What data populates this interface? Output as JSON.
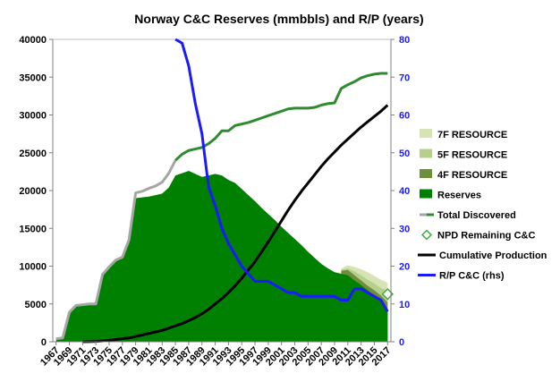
{
  "chart_data": {
    "type": "area",
    "title": "Norway C&C Reserves (mmbbls) and R/P (years)",
    "left_axis": {
      "ticks": [
        0,
        5000,
        10000,
        15000,
        20000,
        25000,
        30000,
        35000,
        40000
      ],
      "ylim": [
        0,
        40000
      ]
    },
    "right_axis": {
      "ticks": [
        0,
        10,
        20,
        30,
        40,
        50,
        60,
        70,
        80
      ],
      "ylim": [
        0,
        80
      ]
    },
    "x_tick_labels": [
      "1967",
      "1969",
      "1971",
      "1973",
      "1975",
      "1977",
      "1979",
      "1981",
      "1983",
      "1985",
      "1987",
      "1989",
      "1991",
      "1993",
      "1995",
      "1997",
      "1999",
      "2001",
      "2003",
      "2005",
      "2007",
      "2009",
      "2011",
      "2013",
      "2015",
      "2017"
    ],
    "xlim": [
      1966.5,
      2017.5
    ],
    "colors": {
      "f7": "#d6e4b4",
      "f5": "#b6cf8c",
      "f4": "#6e8f3a",
      "reserves": "#008000",
      "total_discovered": "#a6a6a6",
      "total_discovered_top": "#2e8b2e",
      "npd": "#44aa44",
      "cumulative": "#000000",
      "rp": "#1a1aff"
    },
    "series": [
      {
        "name": "7F RESOURCE",
        "kind": "area",
        "x": [
          2010,
          2011,
          2012,
          2013,
          2014,
          2015,
          2016,
          2017
        ],
        "values": [
          9700,
          10100,
          9900,
          9600,
          9200,
          8700,
          8200,
          7800
        ]
      },
      {
        "name": "5F RESOURCE",
        "kind": "area",
        "x": [
          2010,
          2011,
          2012,
          2013,
          2014,
          2015,
          2016,
          2017
        ],
        "values": [
          9500,
          9700,
          9300,
          8800,
          8200,
          7700,
          7100,
          6700
        ]
      },
      {
        "name": "4F RESOURCE",
        "kind": "area",
        "x": [
          2010,
          2011,
          2012,
          2013,
          2014,
          2015,
          2016,
          2017
        ],
        "values": [
          9400,
          9500,
          8800,
          8100,
          7400,
          6800,
          6100,
          5200
        ]
      },
      {
        "name": "Reserves",
        "kind": "area",
        "x": [
          1967,
          1968,
          1969,
          1970,
          1971,
          1972,
          1973,
          1974,
          1975,
          1976,
          1977,
          1978,
          1979,
          1980,
          1981,
          1982,
          1983,
          1984,
          1985,
          1986,
          1987,
          1988,
          1989,
          1990,
          1991,
          1992,
          1993,
          1994,
          1995,
          1996,
          1997,
          1998,
          1999,
          2000,
          2001,
          2002,
          2003,
          2004,
          2005,
          2006,
          2007,
          2008,
          2009,
          2010,
          2011,
          2012,
          2013,
          2014,
          2015,
          2016,
          2017
        ],
        "values": [
          400,
          500,
          3800,
          4700,
          4800,
          4900,
          4900,
          8800,
          9800,
          10700,
          11000,
          13000,
          19000,
          19100,
          19200,
          19400,
          19600,
          20400,
          22000,
          22300,
          22600,
          22200,
          21800,
          22000,
          22200,
          22000,
          21400,
          21000,
          20200,
          19400,
          18600,
          17700,
          16900,
          16100,
          15200,
          14400,
          13600,
          12800,
          11900,
          11100,
          10300,
          9700,
          9200,
          9000,
          8800,
          8100,
          7500,
          6800,
          6100,
          5400,
          4300
        ]
      },
      {
        "name": "Total Discovered",
        "kind": "line",
        "x": [
          1967,
          1968,
          1969,
          1970,
          1971,
          1972,
          1973,
          1974,
          1975,
          1976,
          1977,
          1978,
          1979,
          1980,
          1981,
          1982,
          1983,
          1984,
          1985,
          1986,
          1987,
          1988,
          1989,
          1990,
          1991,
          1992,
          1993,
          1994,
          1995,
          1996,
          1997,
          1998,
          1999,
          2000,
          2001,
          2002,
          2003,
          2004,
          2005,
          2006,
          2007,
          2008,
          2009,
          2010,
          2011,
          2012,
          2013,
          2014,
          2015,
          2016,
          2017
        ],
        "values": [
          400,
          500,
          3900,
          4800,
          4900,
          5000,
          5000,
          8900,
          9900,
          10800,
          11200,
          13500,
          19700,
          19900,
          20300,
          20600,
          21100,
          22300,
          24000,
          24800,
          25300,
          25500,
          25700,
          26200,
          26900,
          27900,
          27900,
          28600,
          28800,
          29000,
          29300,
          29600,
          29900,
          30200,
          30500,
          30800,
          30900,
          30900,
          30900,
          31000,
          31300,
          31500,
          31600,
          33500,
          34000,
          34400,
          34900,
          35200,
          35400,
          35500,
          35500
        ]
      },
      {
        "name": "NPD Remaining C&C",
        "kind": "marker",
        "x": [
          2017
        ],
        "values": [
          6300
        ]
      },
      {
        "name": "Cumulative Production",
        "kind": "line",
        "x": [
          1971,
          1972,
          1973,
          1974,
          1975,
          1976,
          1977,
          1978,
          1979,
          1980,
          1981,
          1982,
          1983,
          1984,
          1985,
          1986,
          1987,
          1988,
          1989,
          1990,
          1991,
          1992,
          1993,
          1994,
          1995,
          1996,
          1997,
          1998,
          1999,
          2000,
          2001,
          2002,
          2003,
          2004,
          2005,
          2006,
          2007,
          2008,
          2009,
          2010,
          2011,
          2012,
          2013,
          2014,
          2015,
          2016,
          2017
        ],
        "values": [
          0,
          20,
          50,
          100,
          200,
          300,
          400,
          500,
          700,
          900,
          1100,
          1300,
          1500,
          1800,
          2100,
          2400,
          2800,
          3200,
          3700,
          4300,
          5000,
          5700,
          6500,
          7400,
          8400,
          9500,
          10600,
          11900,
          13200,
          14600,
          16000,
          17400,
          18700,
          19900,
          21000,
          22100,
          23200,
          24200,
          25100,
          26000,
          26800,
          27600,
          28400,
          29100,
          29800,
          30500,
          31300
        ]
      },
      {
        "name": "R/P C&C (rhs)",
        "kind": "line",
        "axis": "right",
        "x": [
          1985,
          1986,
          1987,
          1988,
          1989,
          1990,
          1991,
          1992,
          1993,
          1994,
          1995,
          1996,
          1997,
          1998,
          1999,
          2000,
          2001,
          2002,
          2003,
          2004,
          2005,
          2006,
          2007,
          2008,
          2009,
          2010,
          2011,
          2012,
          2013,
          2014,
          2015,
          2016,
          2017
        ],
        "values": [
          80,
          79,
          73,
          63,
          55,
          41,
          36,
          30,
          26,
          23,
          20,
          18,
          16,
          16,
          16,
          15,
          14,
          13,
          13,
          12,
          12,
          12,
          12,
          12,
          12,
          11,
          11,
          14,
          14,
          13,
          12,
          11,
          8
        ]
      }
    ],
    "legend": {
      "position": "right"
    }
  }
}
